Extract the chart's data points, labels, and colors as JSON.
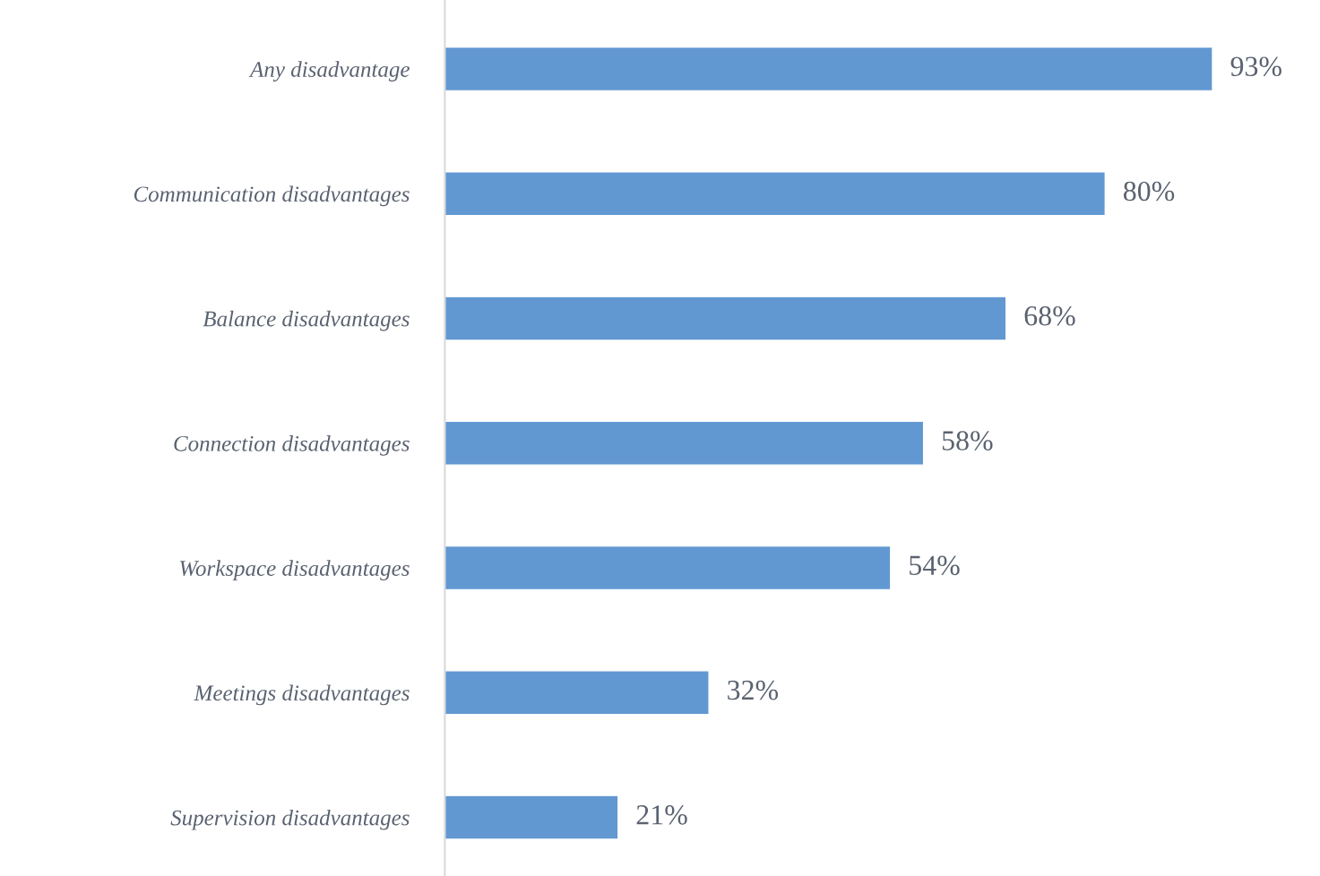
{
  "chart_data": {
    "type": "bar",
    "orientation": "horizontal",
    "categories": [
      "Any disadvantage",
      "Communication disadvantages",
      "Balance disadvantages",
      "Connection disadvantages",
      "Workspace disadvantages",
      "Meetings disadvantages",
      "Supervision disadvantages"
    ],
    "values": [
      93,
      80,
      68,
      58,
      54,
      32,
      21
    ],
    "value_labels": [
      "93%",
      "80%",
      "68%",
      "58%",
      "54%",
      "32%",
      "21%"
    ],
    "color": "#6298d2",
    "tick_labels": "y",
    "grid": false,
    "legend": false
  }
}
